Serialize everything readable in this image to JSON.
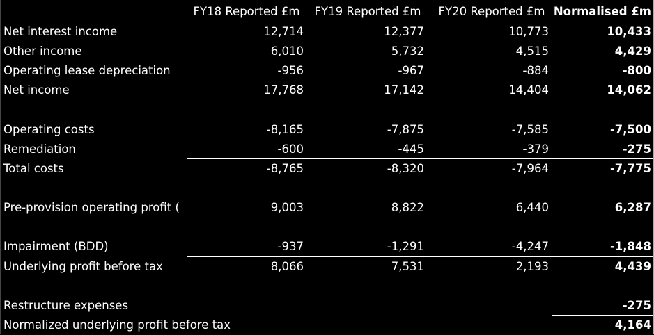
{
  "headers": {
    "label": "",
    "fy18": "FY18 Reported £m",
    "fy19": "FY19 Reported £m",
    "fy20": "FY20 Reported £m",
    "normalised": "Normalised £m"
  },
  "rows": [
    {
      "label": "Net interest income",
      "fy18": "12,714",
      "fy19": "12,377",
      "fy20": "10,773",
      "norm": "10,433"
    },
    {
      "label": "Other income",
      "fy18": "6,010",
      "fy19": "5,732",
      "fy20": "4,515",
      "norm": "4,429"
    },
    {
      "label": "Operating lease depreciation",
      "fy18": "-956",
      "fy19": "-967",
      "fy20": "-884",
      "norm": "-800"
    },
    {
      "label": "Net income",
      "fy18": "17,768",
      "fy19": "17,142",
      "fy20": "14,404",
      "norm": "14,062"
    },
    {
      "label": "Operating costs",
      "fy18": "-8,165",
      "fy19": "-7,875",
      "fy20": "-7,585",
      "norm": "-7,500"
    },
    {
      "label": "Remediation",
      "fy18": "-600",
      "fy19": "-445",
      "fy20": "-379",
      "norm": "-275"
    },
    {
      "label": "Total costs",
      "fy18": "-8,765",
      "fy19": "-8,320",
      "fy20": "-7,964",
      "norm": "-7,775"
    },
    {
      "label": "Pre-provision operating profit (",
      "fy18": "9,003",
      "fy19": "8,822",
      "fy20": "6,440",
      "norm": "6,287"
    },
    {
      "label": "Impairment (BDD)",
      "fy18": "-937",
      "fy19": "-1,291",
      "fy20": "-4,247",
      "norm": "-1,848"
    },
    {
      "label": "Underlying profit before tax",
      "fy18": "8,066",
      "fy19": "7,531",
      "fy20": "2,193",
      "norm": "4,439"
    },
    {
      "label": "Restructure expenses",
      "fy18": "",
      "fy19": "",
      "fy20": "",
      "norm": "-275"
    },
    {
      "label": "Normalized underlying profit before tax",
      "fy18": "",
      "fy19": "",
      "fy20": "",
      "norm": "4,164"
    }
  ]
}
